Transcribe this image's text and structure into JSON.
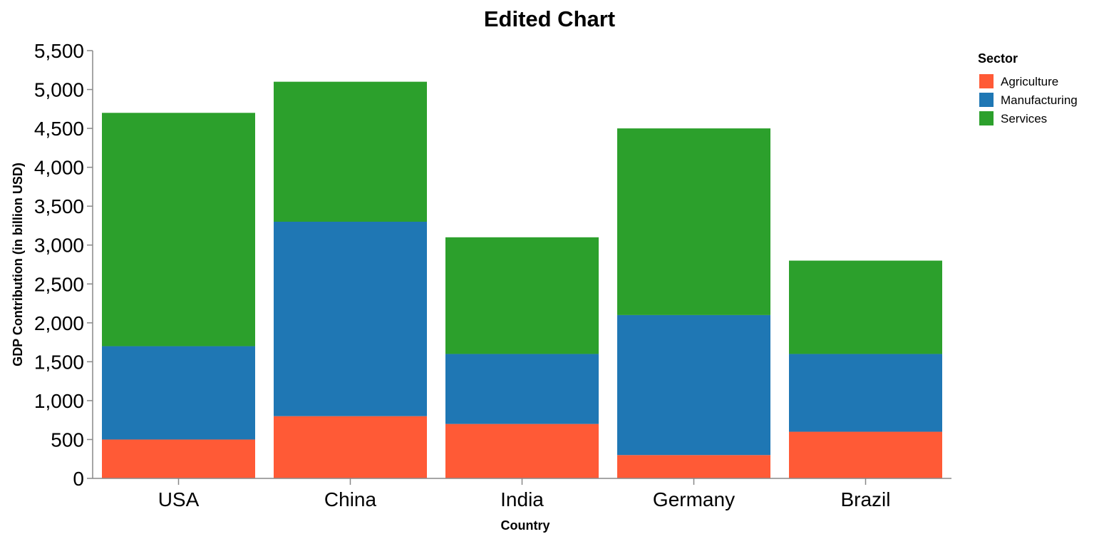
{
  "chart_data": {
    "type": "bar",
    "stacked": true,
    "title": "Edited Chart",
    "xlabel": "Country",
    "ylabel": "GDP Contribution (in billion USD)",
    "categories": [
      "USA",
      "China",
      "India",
      "Germany",
      "Brazil"
    ],
    "ylim": [
      0,
      5500
    ],
    "yticks": [
      0,
      500,
      1000,
      1500,
      2000,
      2500,
      3000,
      3500,
      4000,
      4500,
      5000,
      5500
    ],
    "ytick_labels": [
      "0",
      "500",
      "1,000",
      "1,500",
      "2,000",
      "2,500",
      "3,000",
      "3,500",
      "4,000",
      "4,500",
      "5,000",
      "5,500"
    ],
    "grid": false,
    "legend": {
      "title": "Sector",
      "placement": "top-right"
    },
    "series": [
      {
        "name": "Agriculture",
        "color": "#ff5a36",
        "values": [
          500,
          800,
          700,
          300,
          600
        ]
      },
      {
        "name": "Manufacturing",
        "color": "#1f77b4",
        "values": [
          1200,
          2500,
          900,
          1800,
          1000
        ]
      },
      {
        "name": "Services",
        "color": "#2ca02c",
        "values": [
          3000,
          1800,
          1500,
          2400,
          1200
        ]
      }
    ]
  }
}
